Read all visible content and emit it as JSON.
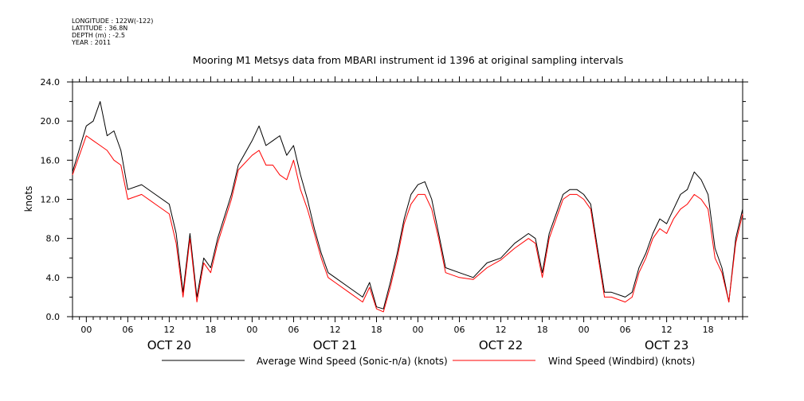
{
  "metadata": [
    "LONGITUDE : 122W(-122)",
    "LATITUDE : 36.8N",
    "DEPTH (m) : -2.5",
    "YEAR : 2011"
  ],
  "chart_data": {
    "type": "line",
    "title": "Mooring M1 Metsys data from MBARI instrument id 1396 at original sampling intervals",
    "ylabel": "knots",
    "xlabel": "",
    "ylim": [
      0,
      24
    ],
    "xlim": [
      "2011-10-19 22:00",
      "2011-10-23 23:00"
    ],
    "yticks": [
      "0.0",
      "4.0",
      "8.0",
      "12.0",
      "16.0",
      "20.0",
      "24.0"
    ],
    "hour_tick_labels": [
      "00",
      "06",
      "12",
      "18"
    ],
    "day_labels": [
      "OCT 20",
      "OCT 21",
      "OCT 22",
      "OCT 23"
    ],
    "legend": "bottom",
    "grid": false,
    "series": [
      {
        "name": "Average Wind Speed (Sonic-n/a) (knots)",
        "color": "#000000",
        "points": [
          [
            "2011-10-19 22:00",
            14.8
          ],
          [
            "2011-10-20 00:00",
            19.5
          ],
          [
            "2011-10-20 01:00",
            20.0
          ],
          [
            "2011-10-20 02:00",
            22.0
          ],
          [
            "2011-10-20 03:00",
            18.5
          ],
          [
            "2011-10-20 04:00",
            19.0
          ],
          [
            "2011-10-20 05:00",
            17.0
          ],
          [
            "2011-10-20 06:00",
            13.0
          ],
          [
            "2011-10-20 08:00",
            13.5
          ],
          [
            "2011-10-20 10:00",
            12.5
          ],
          [
            "2011-10-20 12:00",
            11.5
          ],
          [
            "2011-10-20 13:00",
            8.5
          ],
          [
            "2011-10-20 14:00",
            2.5
          ],
          [
            "2011-10-20 15:00",
            8.5
          ],
          [
            "2011-10-20 16:00",
            2.0
          ],
          [
            "2011-10-20 17:00",
            6.0
          ],
          [
            "2011-10-20 18:00",
            5.0
          ],
          [
            "2011-10-20 19:00",
            8.0
          ],
          [
            "2011-10-20 21:00",
            12.5
          ],
          [
            "2011-10-20 22:00",
            15.5
          ],
          [
            "2011-10-21 00:00",
            18.0
          ],
          [
            "2011-10-21 01:00",
            19.5
          ],
          [
            "2011-10-21 02:00",
            17.5
          ],
          [
            "2011-10-21 03:00",
            18.0
          ],
          [
            "2011-10-21 04:00",
            18.5
          ],
          [
            "2011-10-21 05:00",
            16.5
          ],
          [
            "2011-10-21 06:00",
            17.5
          ],
          [
            "2011-10-21 07:00",
            14.5
          ],
          [
            "2011-10-21 08:00",
            12.0
          ],
          [
            "2011-10-21 09:00",
            9.0
          ],
          [
            "2011-10-21 10:00",
            6.5
          ],
          [
            "2011-10-21 11:00",
            4.5
          ],
          [
            "2011-10-21 12:00",
            4.0
          ],
          [
            "2011-10-21 14:00",
            3.0
          ],
          [
            "2011-10-21 16:00",
            2.0
          ],
          [
            "2011-10-21 17:00",
            3.5
          ],
          [
            "2011-10-21 18:00",
            1.0
          ],
          [
            "2011-10-21 19:00",
            0.8
          ],
          [
            "2011-10-21 20:00",
            3.5
          ],
          [
            "2011-10-21 21:00",
            6.5
          ],
          [
            "2011-10-21 22:00",
            10.0
          ],
          [
            "2011-10-21 23:00",
            12.5
          ],
          [
            "2011-10-22 00:00",
            13.5
          ],
          [
            "2011-10-22 01:00",
            13.8
          ],
          [
            "2011-10-22 02:00",
            12.0
          ],
          [
            "2011-10-22 03:00",
            8.5
          ],
          [
            "2011-10-22 04:00",
            5.0
          ],
          [
            "2011-10-22 06:00",
            4.5
          ],
          [
            "2011-10-22 08:00",
            4.0
          ],
          [
            "2011-10-22 10:00",
            5.5
          ],
          [
            "2011-10-22 12:00",
            6.0
          ],
          [
            "2011-10-22 14:00",
            7.5
          ],
          [
            "2011-10-22 16:00",
            8.5
          ],
          [
            "2011-10-22 17:00",
            8.0
          ],
          [
            "2011-10-22 18:00",
            4.5
          ],
          [
            "2011-10-22 19:00",
            8.5
          ],
          [
            "2011-10-22 20:00",
            10.5
          ],
          [
            "2011-10-22 21:00",
            12.5
          ],
          [
            "2011-10-22 22:00",
            13.0
          ],
          [
            "2011-10-22 23:00",
            13.0
          ],
          [
            "2011-10-23 00:00",
            12.5
          ],
          [
            "2011-10-23 01:00",
            11.5
          ],
          [
            "2011-10-23 02:00",
            7.0
          ],
          [
            "2011-10-23 03:00",
            2.5
          ],
          [
            "2011-10-23 04:00",
            2.5
          ],
          [
            "2011-10-23 06:00",
            2.0
          ],
          [
            "2011-10-23 07:00",
            2.5
          ],
          [
            "2011-10-23 08:00",
            5.0
          ],
          [
            "2011-10-23 09:00",
            6.5
          ],
          [
            "2011-10-23 10:00",
            8.5
          ],
          [
            "2011-10-23 11:00",
            10.0
          ],
          [
            "2011-10-23 12:00",
            9.5
          ],
          [
            "2011-10-23 13:00",
            11.0
          ],
          [
            "2011-10-23 14:00",
            12.5
          ],
          [
            "2011-10-23 15:00",
            13.0
          ],
          [
            "2011-10-23 16:00",
            14.8
          ],
          [
            "2011-10-23 17:00",
            14.0
          ],
          [
            "2011-10-23 18:00",
            12.5
          ],
          [
            "2011-10-23 19:00",
            7.0
          ],
          [
            "2011-10-23 20:00",
            5.0
          ],
          [
            "2011-10-23 21:00",
            1.5
          ],
          [
            "2011-10-23 22:00",
            8.0
          ],
          [
            "2011-10-23 23:00",
            11.0
          ]
        ]
      },
      {
        "name": "Wind Speed (Windbird) (knots)",
        "color": "#ff0000",
        "points": [
          [
            "2011-10-19 22:00",
            14.5
          ],
          [
            "2011-10-20 00:00",
            18.5
          ],
          [
            "2011-10-20 01:00",
            18.0
          ],
          [
            "2011-10-20 02:00",
            17.5
          ],
          [
            "2011-10-20 03:00",
            17.0
          ],
          [
            "2011-10-20 04:00",
            16.0
          ],
          [
            "2011-10-20 05:00",
            15.5
          ],
          [
            "2011-10-20 06:00",
            12.0
          ],
          [
            "2011-10-20 08:00",
            12.5
          ],
          [
            "2011-10-20 10:00",
            11.5
          ],
          [
            "2011-10-20 12:00",
            10.5
          ],
          [
            "2011-10-20 13:00",
            7.5
          ],
          [
            "2011-10-20 14:00",
            2.0
          ],
          [
            "2011-10-20 15:00",
            8.0
          ],
          [
            "2011-10-20 16:00",
            1.5
          ],
          [
            "2011-10-20 17:00",
            5.5
          ],
          [
            "2011-10-20 18:00",
            4.5
          ],
          [
            "2011-10-20 19:00",
            7.5
          ],
          [
            "2011-10-20 21:00",
            12.0
          ],
          [
            "2011-10-20 22:00",
            15.0
          ],
          [
            "2011-10-21 00:00",
            16.5
          ],
          [
            "2011-10-21 01:00",
            17.0
          ],
          [
            "2011-10-21 02:00",
            15.5
          ],
          [
            "2011-10-21 03:00",
            15.5
          ],
          [
            "2011-10-21 04:00",
            14.5
          ],
          [
            "2011-10-21 05:00",
            14.0
          ],
          [
            "2011-10-21 06:00",
            16.0
          ],
          [
            "2011-10-21 07:00",
            13.0
          ],
          [
            "2011-10-21 08:00",
            11.0
          ],
          [
            "2011-10-21 09:00",
            8.5
          ],
          [
            "2011-10-21 10:00",
            6.0
          ],
          [
            "2011-10-21 11:00",
            4.0
          ],
          [
            "2011-10-21 12:00",
            3.5
          ],
          [
            "2011-10-21 14:00",
            2.5
          ],
          [
            "2011-10-21 16:00",
            1.5
          ],
          [
            "2011-10-21 17:00",
            3.0
          ],
          [
            "2011-10-21 18:00",
            0.8
          ],
          [
            "2011-10-21 19:00",
            0.5
          ],
          [
            "2011-10-21 20:00",
            3.0
          ],
          [
            "2011-10-21 21:00",
            6.0
          ],
          [
            "2011-10-21 22:00",
            9.5
          ],
          [
            "2011-10-21 23:00",
            11.5
          ],
          [
            "2011-10-22 00:00",
            12.5
          ],
          [
            "2011-10-22 01:00",
            12.5
          ],
          [
            "2011-10-22 02:00",
            11.0
          ],
          [
            "2011-10-22 03:00",
            8.0
          ],
          [
            "2011-10-22 04:00",
            4.5
          ],
          [
            "2011-10-22 06:00",
            4.0
          ],
          [
            "2011-10-22 08:00",
            3.8
          ],
          [
            "2011-10-22 10:00",
            5.0
          ],
          [
            "2011-10-22 12:00",
            5.8
          ],
          [
            "2011-10-22 14:00",
            7.0
          ],
          [
            "2011-10-22 16:00",
            8.0
          ],
          [
            "2011-10-22 17:00",
            7.5
          ],
          [
            "2011-10-22 18:00",
            4.0
          ],
          [
            "2011-10-22 19:00",
            8.0
          ],
          [
            "2011-10-22 20:00",
            10.0
          ],
          [
            "2011-10-22 21:00",
            12.0
          ],
          [
            "2011-10-22 22:00",
            12.5
          ],
          [
            "2011-10-22 23:00",
            12.5
          ],
          [
            "2011-10-23 00:00",
            12.0
          ],
          [
            "2011-10-23 01:00",
            11.0
          ],
          [
            "2011-10-23 02:00",
            6.5
          ],
          [
            "2011-10-23 03:00",
            2.0
          ],
          [
            "2011-10-23 04:00",
            2.0
          ],
          [
            "2011-10-23 06:00",
            1.5
          ],
          [
            "2011-10-23 07:00",
            2.0
          ],
          [
            "2011-10-23 08:00",
            4.5
          ],
          [
            "2011-10-23 09:00",
            6.0
          ],
          [
            "2011-10-23 10:00",
            8.0
          ],
          [
            "2011-10-23 11:00",
            9.0
          ],
          [
            "2011-10-23 12:00",
            8.5
          ],
          [
            "2011-10-23 13:00",
            10.0
          ],
          [
            "2011-10-23 14:00",
            11.0
          ],
          [
            "2011-10-23 15:00",
            11.5
          ],
          [
            "2011-10-23 16:00",
            12.5
          ],
          [
            "2011-10-23 17:00",
            12.0
          ],
          [
            "2011-10-23 18:00",
            11.0
          ],
          [
            "2011-10-23 19:00",
            6.0
          ],
          [
            "2011-10-23 20:00",
            4.5
          ],
          [
            "2011-10-23 21:00",
            1.5
          ],
          [
            "2011-10-23 22:00",
            7.5
          ],
          [
            "2011-10-23 23:00",
            10.5
          ]
        ]
      }
    ]
  }
}
